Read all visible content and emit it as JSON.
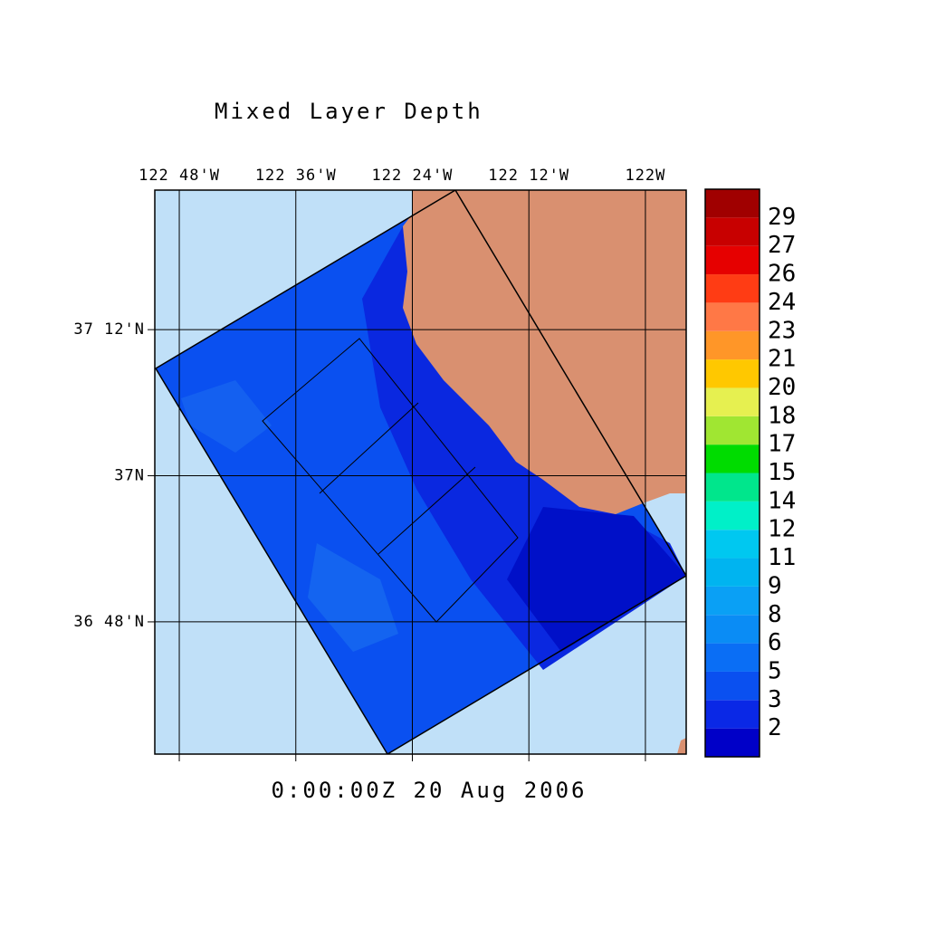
{
  "chart_data": {
    "type": "map",
    "title": "Mixed Layer Depth",
    "time_label": "0:00:00Z  20 Aug 2006",
    "xlim": [
      -122.842,
      -121.93
    ],
    "ylim": [
      36.619,
      37.391
    ],
    "xticks": [
      {
        "value": -122.8,
        "label": "122 48'W"
      },
      {
        "value": -122.6,
        "label": "122 36'W"
      },
      {
        "value": -122.4,
        "label": "122 24'W"
      },
      {
        "value": -122.2,
        "label": "122 12'W"
      },
      {
        "value": -122.0,
        "label": "122W"
      }
    ],
    "yticks": [
      {
        "value": 37.2,
        "label": "37 12'N"
      },
      {
        "value": 37.0,
        "label": "37N"
      },
      {
        "value": 36.8,
        "label": "36 48'N"
      }
    ],
    "grid": true,
    "colorbar": {
      "levels": [
        2,
        3,
        5,
        6,
        8,
        9,
        11,
        12,
        14,
        15,
        17,
        18,
        20,
        21,
        23,
        24,
        26,
        27,
        29
      ],
      "colors": [
        "#0000c8",
        "#0a28e6",
        "#0a50f0",
        "#0a6ef5",
        "#0a8cf5",
        "#0aa0f5",
        "#00b4f0",
        "#00c8f0",
        "#00e0f0",
        "#00ffff",
        "#00f0c8",
        "#00e68c",
        "#00dc00",
        "#a0e632",
        "#e6f050",
        "#ffc800",
        "#ff9628",
        "#ff7846",
        "#ff3c14",
        "#e60000",
        "#c80000",
        "#a00000"
      ]
    }
  }
}
